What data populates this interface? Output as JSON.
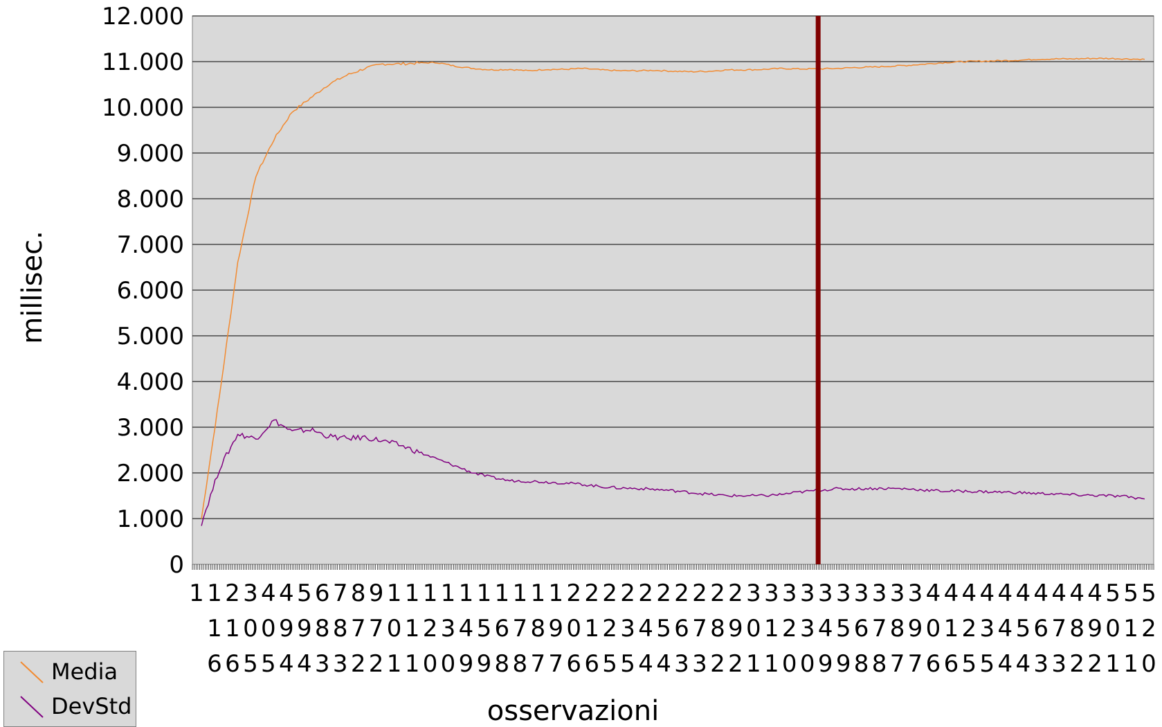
{
  "chart_data": {
    "type": "line",
    "xlabel": "osservazioni",
    "ylabel": "millisec.",
    "ylim": [
      0,
      12000
    ],
    "yticks": [
      "0",
      "1.000",
      "2.000",
      "3.000",
      "4.000",
      "5.000",
      "6.000",
      "7.000",
      "8.000",
      "9.000",
      "10.000",
      "11.000",
      "12.000"
    ],
    "x_tick_labels": [
      "1",
      "1\n1\n6",
      "2\n1\n6",
      "3\n0\n5",
      "4\n0\n5",
      "4\n9\n4",
      "5\n9\n4",
      "6\n8\n3",
      "7\n8\n3",
      "8\n7\n2",
      "9\n7\n2",
      "1\n0\n1",
      "1\n1\n1",
      "1\n2\n0",
      "1\n3\n0",
      "1\n4\n9",
      "1\n5\n9",
      "1\n6\n8",
      "1\n7\n8",
      "1\n8\n7",
      "1\n9\n7",
      "2\n0\n6",
      "2\n1\n6",
      "2\n2\n5",
      "2\n3\n5",
      "2\n4\n4",
      "2\n5\n4",
      "2\n6\n3",
      "2\n7\n3",
      "2\n8\n2",
      "2\n9\n2",
      "3\n0\n1",
      "3\n1\n1",
      "3\n2\n0",
      "3\n3\n0",
      "3\n4\n9",
      "3\n5\n9",
      "3\n6\n8",
      "3\n7\n8",
      "3\n8\n7",
      "3\n9\n7",
      "4\n0\n6",
      "4\n1\n6",
      "4\n2\n5",
      "4\n3\n5",
      "4\n4\n4",
      "4\n5\n4",
      "4\n6\n3",
      "4\n7\n3",
      "4\n8\n2",
      "4\n9\n2",
      "5\n0\n1",
      "5\n1\n1",
      "5\n2\n0"
    ],
    "vertical_marker_x": 34.5,
    "n_points": 53,
    "series": [
      {
        "name": "Media",
        "color": "#f28a30",
        "values": [
          1000,
          3700,
          6600,
          8500,
          9300,
          9900,
          10200,
          10500,
          10700,
          10850,
          10950,
          10950,
          10970,
          10980,
          10900,
          10850,
          10820,
          10830,
          10800,
          10830,
          10830,
          10850,
          10820,
          10800,
          10800,
          10810,
          10790,
          10780,
          10790,
          10820,
          10820,
          10830,
          10850,
          10840,
          10840,
          10850,
          10870,
          10880,
          10900,
          10920,
          10950,
          10980,
          11000,
          11010,
          11020,
          11030,
          11050,
          11060,
          11060,
          11070,
          11070,
          11060,
          11050
        ]
      },
      {
        "name": "DevStd",
        "color": "#800080",
        "values": [
          900,
          2100,
          2850,
          2750,
          3150,
          2900,
          2950,
          2800,
          2750,
          2780,
          2700,
          2600,
          2450,
          2300,
          2150,
          2000,
          1900,
          1830,
          1820,
          1800,
          1780,
          1750,
          1700,
          1670,
          1660,
          1640,
          1610,
          1570,
          1530,
          1500,
          1500,
          1500,
          1530,
          1580,
          1620,
          1650,
          1650,
          1660,
          1660,
          1650,
          1620,
          1600,
          1600,
          1590,
          1580,
          1570,
          1550,
          1540,
          1520,
          1510,
          1500,
          1480,
          1430
        ]
      }
    ],
    "marker_color": "#800000",
    "plot_background": "#d9d9d9",
    "grid": true,
    "legend_position": "bottom-left"
  }
}
